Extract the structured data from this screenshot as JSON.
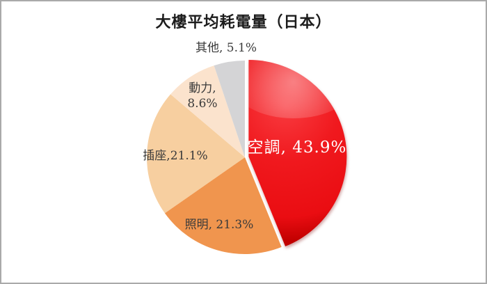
{
  "frame": {
    "background": "#ffffff",
    "border_color": "#a9a9a9"
  },
  "title": "大樓平均耗電量（日本）",
  "chart_data": {
    "type": "pie",
    "title": "大樓平均耗電量（日本）",
    "unit": "%",
    "start_angle_deg": 0,
    "direction": "clockwise",
    "total": 100.0,
    "legend": "none",
    "slices": [
      {
        "id": "aircon",
        "name": "空調",
        "value": 43.9,
        "label": "空調, 43.9%",
        "color": "#ee191e",
        "label_color": "#ffffff",
        "exploded": true,
        "glossy": true
      },
      {
        "id": "lighting",
        "name": "照明",
        "value": 21.3,
        "label": "照明, 21.3%",
        "color": "#f0954e",
        "label_color": "#3a3a3a",
        "exploded": false,
        "glossy": false
      },
      {
        "id": "outlets",
        "name": "插座",
        "value": 21.1,
        "label": "插座,21.1%",
        "color": "#f7cfa0",
        "label_color": "#3a3a3a",
        "exploded": false,
        "glossy": false
      },
      {
        "id": "power",
        "name": "動力",
        "value": 8.6,
        "label": "動力,\n8.6%",
        "color": "#fbe3cd",
        "label_color": "#3a3a3a",
        "exploded": false,
        "glossy": false
      },
      {
        "id": "others",
        "name": "其他",
        "value": 5.1,
        "label": "其他, 5.1%",
        "color": "#d4d4d6",
        "label_color": "#3a3a3a",
        "exploded": false,
        "glossy": false
      }
    ]
  }
}
